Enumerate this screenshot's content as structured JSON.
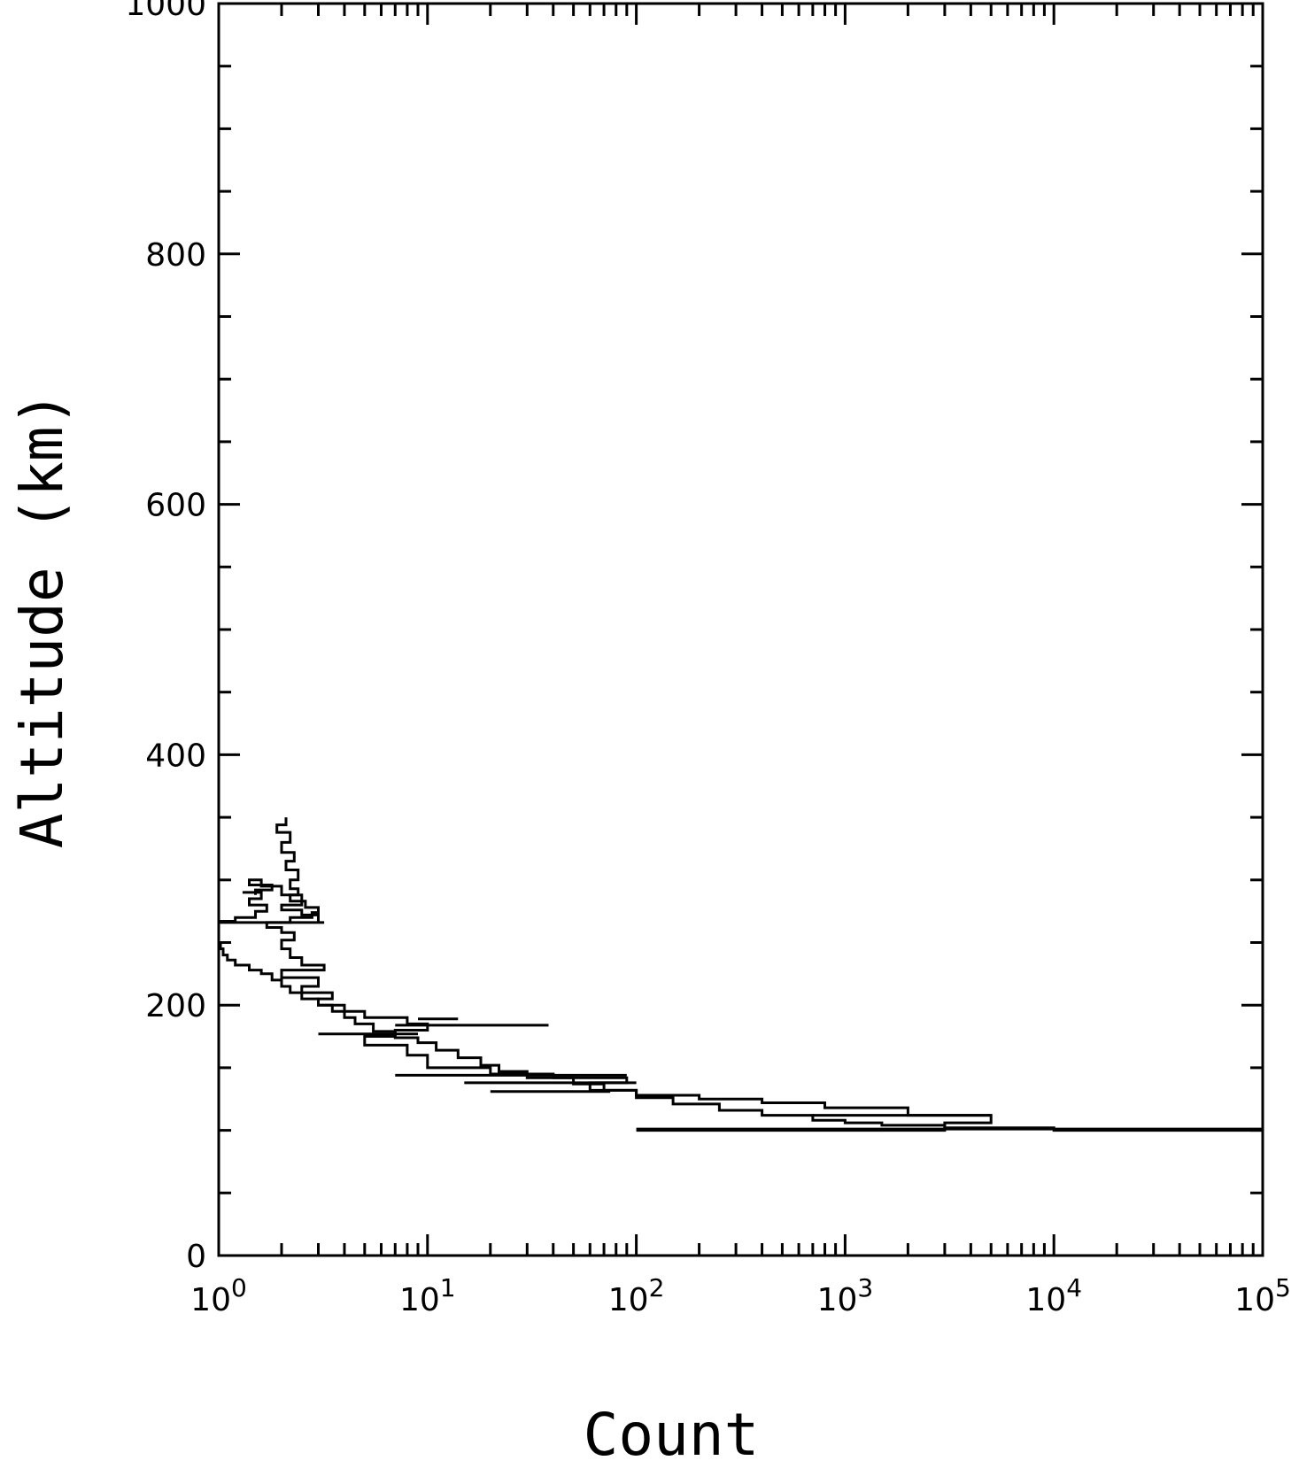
{
  "chart_data": {
    "type": "line",
    "title": "",
    "xlabel": "Count",
    "ylabel": "Altitude (km)",
    "x_scale": "log",
    "xlim": [
      1,
      100000
    ],
    "ylim": [
      0,
      1000
    ],
    "x_major_ticks": [
      {
        "value": 1,
        "base": "10",
        "exp": "0"
      },
      {
        "value": 10,
        "base": "10",
        "exp": "1"
      },
      {
        "value": 100,
        "base": "10",
        "exp": "2"
      },
      {
        "value": 1000,
        "base": "10",
        "exp": "3"
      },
      {
        "value": 10000,
        "base": "10",
        "exp": "4"
      },
      {
        "value": 100000,
        "base": "10",
        "exp": "5"
      }
    ],
    "y_major_ticks": [
      0,
      200,
      400,
      600,
      800,
      1000
    ],
    "y_minor_step": 50,
    "grid": false,
    "series": [
      {
        "points": [
          [
            100000,
            100
          ],
          [
            30000,
            100
          ],
          [
            10000,
            102
          ],
          [
            3000,
            104
          ],
          [
            1500,
            106
          ],
          [
            1000,
            108
          ],
          [
            700,
            112
          ],
          [
            400,
            116
          ],
          [
            250,
            121
          ],
          [
            150,
            126
          ],
          [
            100,
            132
          ],
          [
            70,
            137
          ],
          [
            50,
            142
          ],
          [
            30,
            147
          ],
          [
            22,
            152
          ],
          [
            18,
            158
          ],
          [
            14,
            164
          ],
          [
            11,
            170
          ],
          [
            9,
            174
          ],
          [
            7,
            179
          ],
          [
            5.5,
            185
          ],
          [
            4.5,
            190
          ],
          [
            4,
            195
          ],
          [
            3.5,
            200
          ],
          [
            3,
            205
          ],
          [
            2.5,
            210
          ],
          [
            2.2,
            215
          ],
          [
            2,
            220
          ],
          [
            1.8,
            225
          ],
          [
            1.6,
            228
          ],
          [
            1.4,
            232
          ],
          [
            1.2,
            236
          ],
          [
            1.1,
            240
          ],
          [
            1.05,
            245
          ],
          [
            1.02,
            250
          ]
        ]
      },
      {
        "points": [
          [
            100,
            100
          ],
          [
            1000,
            100
          ],
          [
            3000,
            106
          ],
          [
            5000,
            112
          ],
          [
            2000,
            118
          ],
          [
            800,
            122
          ],
          [
            400,
            125
          ],
          [
            200,
            128
          ],
          [
            100,
            132
          ],
          [
            60,
            138
          ],
          [
            90,
            142
          ],
          [
            40,
            145
          ],
          [
            20,
            150
          ],
          [
            10,
            160
          ],
          [
            8,
            168
          ],
          [
            5,
            175
          ],
          [
            7,
            180
          ],
          [
            10,
            185
          ],
          [
            8,
            190
          ],
          [
            5,
            195
          ],
          [
            4,
            200
          ],
          [
            3,
            205
          ],
          [
            3.5,
            210
          ],
          [
            2.5,
            215
          ],
          [
            3,
            222
          ],
          [
            2,
            228
          ],
          [
            3.2,
            232
          ],
          [
            2.5,
            238
          ],
          [
            2.2,
            245
          ],
          [
            2,
            252
          ],
          [
            2.3,
            258
          ],
          [
            2,
            262
          ],
          [
            1.7,
            266
          ],
          [
            2.2,
            270
          ],
          [
            2.8,
            274
          ],
          [
            3,
            278
          ],
          [
            2.6,
            283
          ],
          [
            2.2,
            288
          ],
          [
            2.4,
            293
          ],
          [
            2.2,
            300
          ],
          [
            2.4,
            308
          ],
          [
            2.1,
            315
          ],
          [
            2.3,
            322
          ],
          [
            2,
            330
          ],
          [
            2.2,
            338
          ],
          [
            1.9,
            344
          ],
          [
            2.1,
            350
          ]
        ]
      },
      {
        "points": [
          [
            1.3,
            290
          ],
          [
            1.6,
            285
          ],
          [
            1.4,
            280
          ],
          [
            1.7,
            275
          ],
          [
            1.5,
            270
          ],
          [
            1.2,
            267
          ],
          [
            1,
            266
          ],
          [
            3.2,
            266
          ],
          [
            3,
            272
          ],
          [
            2.5,
            276
          ],
          [
            2,
            280
          ],
          [
            2.5,
            288
          ],
          [
            2,
            295
          ],
          [
            1.6,
            300
          ],
          [
            1.4,
            296
          ],
          [
            1.8,
            292
          ],
          [
            1.5,
            288
          ]
        ]
      }
    ],
    "spikes": [
      {
        "y": 184,
        "x_from": 7,
        "x_to": 38
      },
      {
        "y": 189,
        "x_from": 9,
        "x_to": 14
      },
      {
        "y": 177,
        "x_from": 3,
        "x_to": 9
      },
      {
        "y": 144,
        "x_from": 7,
        "x_to": 90
      },
      {
        "y": 138,
        "x_from": 15,
        "x_to": 100
      },
      {
        "y": 131,
        "x_from": 20,
        "x_to": 75
      },
      {
        "y": 101,
        "x_from": 100,
        "x_to": 100000
      },
      {
        "y": 112,
        "x_from": 700,
        "x_to": 5000
      }
    ]
  }
}
